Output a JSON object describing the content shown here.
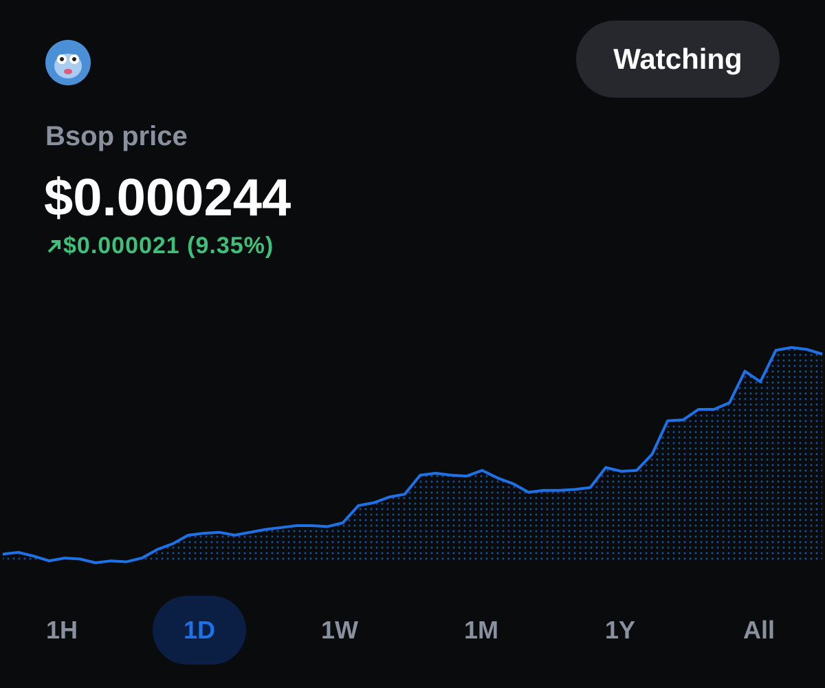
{
  "header": {
    "button": "Watching"
  },
  "asset": {
    "label": "Bsop price",
    "price": "$0.000244",
    "change": "$0.000021 (9.35%)"
  },
  "chart_data": {
    "type": "line",
    "color": "#1d72e8",
    "values": [
      0.000223,
      0.0002232,
      0.0002228,
      0.0002223,
      0.0002226,
      0.0002225,
      0.0002221,
      0.0002223,
      0.0002222,
      0.0002226,
      0.0002235,
      0.0002241,
      0.000225,
      0.0002252,
      0.0002253,
      0.000225,
      0.0002253,
      0.0002256,
      0.0002258,
      0.000226,
      0.000226,
      0.0002259,
      0.0002263,
      0.0002281,
      0.0002284,
      0.000229,
      0.0002293,
      0.0002313,
      0.0002315,
      0.0002313,
      0.0002312,
      0.0002318,
      0.000231,
      0.0002304,
      0.0002295,
      0.0002297,
      0.0002297,
      0.0002298,
      0.00023,
      0.0002321,
      0.0002317,
      0.0002318,
      0.0002335,
      0.000237,
      0.0002371,
      0.0002382,
      0.0002382,
      0.0002389,
      0.0002422,
      0.0002411,
      0.0002444,
      0.0002447,
      0.0002445,
      0.000244
    ]
  },
  "ranges": {
    "items": [
      "1H",
      "1D",
      "1W",
      "1M",
      "1Y",
      "All"
    ],
    "selected_index": 1
  }
}
